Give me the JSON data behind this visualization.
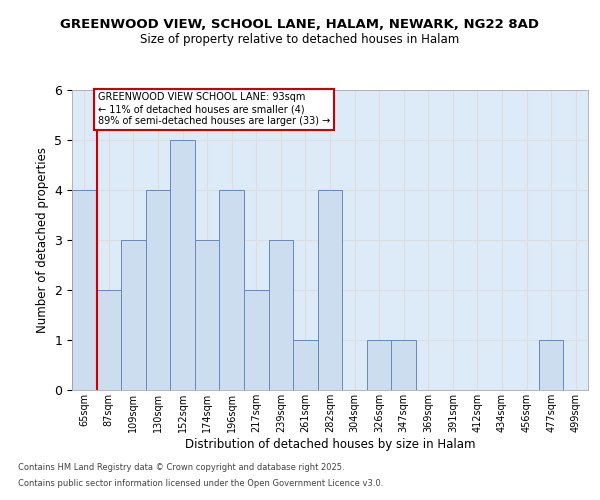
{
  "title1": "GREENWOOD VIEW, SCHOOL LANE, HALAM, NEWARK, NG22 8AD",
  "title2": "Size of property relative to detached houses in Halam",
  "xlabel": "Distribution of detached houses by size in Halam",
  "ylabel": "Number of detached properties",
  "categories": [
    "65sqm",
    "87sqm",
    "109sqm",
    "130sqm",
    "152sqm",
    "174sqm",
    "196sqm",
    "217sqm",
    "239sqm",
    "261sqm",
    "282sqm",
    "304sqm",
    "326sqm",
    "347sqm",
    "369sqm",
    "391sqm",
    "412sqm",
    "434sqm",
    "456sqm",
    "477sqm",
    "499sqm"
  ],
  "values": [
    4,
    2,
    3,
    4,
    5,
    3,
    4,
    2,
    3,
    1,
    4,
    0,
    1,
    1,
    0,
    0,
    0,
    0,
    0,
    1,
    0
  ],
  "bar_color": "#ccddf0",
  "bar_edge_color": "#6688bb",
  "ylim": [
    0,
    6
  ],
  "yticks": [
    0,
    1,
    2,
    3,
    4,
    5,
    6
  ],
  "annotation_text": "GREENWOOD VIEW SCHOOL LANE: 93sqm\n← 11% of detached houses are smaller (4)\n89% of semi-detached houses are larger (33) →",
  "annotation_box_facecolor": "#ffffff",
  "annotation_box_edgecolor": "#cc0000",
  "red_line_x": 0.5,
  "grid_color": "#dddddd",
  "background_color": "#ddeaf8",
  "footer1": "Contains HM Land Registry data © Crown copyright and database right 2025.",
  "footer2": "Contains public sector information licensed under the Open Government Licence v3.0."
}
